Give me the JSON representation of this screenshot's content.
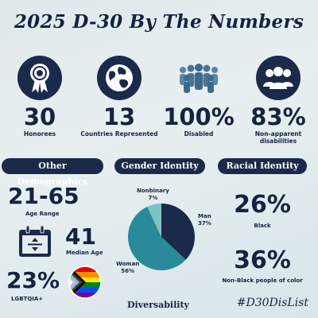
{
  "title": "2025 D-30 By The Numbers",
  "stats": [
    {
      "value": "30",
      "label": "Honorees",
      "icon": "award-ribbon-icon"
    },
    {
      "value": "13",
      "label": "Countries Represented",
      "icon": "globe-icon"
    },
    {
      "value": "100%",
      "label": "Disabled",
      "icon": "crowd-icon"
    },
    {
      "value": "83%",
      "label": "Non-apparent disabilities",
      "icon": "group-icon"
    }
  ],
  "sections": {
    "other": "Other Demographics",
    "gender": "Gender Identity",
    "racial": "Racial Identity"
  },
  "other_demographics": {
    "age_range_value": "21-65",
    "age_range_label": "Age Range",
    "median_age_value": "41",
    "median_age_label": "Median Age",
    "lgbtqia_value": "23%",
    "lgbtqia_label": "LGBTQIA+"
  },
  "chart_data": {
    "type": "pie",
    "categories": [
      "Man",
      "Woman",
      "Nonbinary"
    ],
    "values": [
      37,
      56,
      7
    ],
    "value_labels": [
      "37%",
      "56%",
      "7%"
    ],
    "colors": [
      "#1b2a4a",
      "#2b8a99",
      "#7cc4c4"
    ]
  },
  "racial_identity": {
    "black_value": "26%",
    "black_label": "Black",
    "nonblack_value": "36%",
    "nonblack_label": "Non-Black people of color"
  },
  "footer": {
    "brand": "Diversability",
    "hashtag": "#D30DisList"
  }
}
